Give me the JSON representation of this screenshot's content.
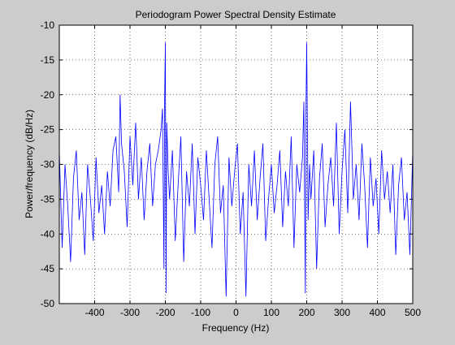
{
  "chart_data": {
    "type": "line",
    "title": "Periodogram Power Spectral Density Estimate",
    "xlabel": "Frequency (Hz)",
    "ylabel": "Power/frequency (dB/Hz)",
    "xlim": [
      -500,
      500
    ],
    "ylim": [
      -50,
      -10
    ],
    "xticks": [
      -400,
      -300,
      -200,
      -100,
      0,
      100,
      200,
      300,
      400,
      500
    ],
    "yticks": [
      -10,
      -15,
      -20,
      -25,
      -30,
      -35,
      -40,
      -45,
      -50
    ],
    "grid": true,
    "line_color": "#0000ff",
    "series": [
      {
        "x": [
          -500,
          -492,
          -484,
          -476,
          -468,
          -460,
          -452,
          -444,
          -436,
          -428,
          -420,
          -412,
          -404,
          -396,
          -388,
          -380,
          -372,
          -364,
          -356,
          -348,
          -340,
          -332,
          -328,
          -324,
          -316,
          -308,
          -300,
          -292,
          -284,
          -276,
          -268,
          -260,
          -252,
          -244,
          -236,
          -228,
          -220,
          -212,
          -208,
          -204,
          -202,
          -200,
          -198,
          -196,
          -192,
          -188,
          -180,
          -172,
          -164,
          -156,
          -148,
          -140,
          -132,
          -124,
          -116,
          -108,
          -100,
          -92,
          -84,
          -76,
          -68,
          -60,
          -52,
          -44,
          -36,
          -28,
          -20,
          -12,
          -4,
          4,
          12,
          20,
          28,
          36,
          44,
          52,
          60,
          68,
          76,
          84,
          92,
          100,
          108,
          116,
          124,
          132,
          140,
          148,
          156,
          164,
          172,
          180,
          188,
          192,
          196,
          198,
          200,
          202,
          204,
          208,
          212,
          220,
          228,
          236,
          244,
          252,
          260,
          268,
          276,
          284,
          292,
          300,
          308,
          316,
          324,
          328,
          332,
          340,
          348,
          356,
          364,
          372,
          380,
          388,
          396,
          404,
          412,
          420,
          428,
          436,
          444,
          452,
          460,
          468,
          476,
          484,
          492,
          500
        ],
        "y": [
          -28,
          -42,
          -30,
          -36,
          -44,
          -32,
          -28,
          -38,
          -34,
          -43,
          -30,
          -35,
          -41,
          -29,
          -37,
          -33,
          -40,
          -31,
          -36,
          -28,
          -26,
          -34,
          -20,
          -27,
          -31,
          -39,
          -26,
          -33,
          -24,
          -35,
          -29,
          -38,
          -31,
          -27,
          -36,
          -30,
          -28,
          -25,
          -22,
          -45,
          -21,
          -12.5,
          -48.5,
          -24,
          -31,
          -35,
          -28,
          -41,
          -33,
          -26,
          -44,
          -31,
          -36,
          -27,
          -40,
          -29,
          -33,
          -38,
          -28,
          -35,
          -42,
          -30,
          -26,
          -37,
          -33,
          -49,
          -29,
          -36,
          -31,
          -27,
          -40,
          -34,
          -49,
          -30,
          -36,
          -28,
          -38,
          -32,
          -27,
          -41,
          -35,
          -30,
          -37,
          -33,
          -28,
          -39,
          -31,
          -36,
          -26,
          -42,
          -30,
          -34,
          -29,
          -21,
          -48.5,
          -22,
          -12.5,
          -25,
          -38,
          -30,
          -35,
          -28,
          -45,
          -32,
          -27,
          -39,
          -33,
          -29,
          -36,
          -24,
          -40,
          -31,
          -25,
          -37,
          -21,
          -28,
          -35,
          -30,
          -38,
          -27,
          -33,
          -42,
          -29,
          -36,
          -32,
          -40,
          -28,
          -35,
          -31,
          -37,
          -30,
          -43,
          -33,
          -29,
          -38,
          -34,
          -43,
          -28
        ]
      }
    ]
  }
}
